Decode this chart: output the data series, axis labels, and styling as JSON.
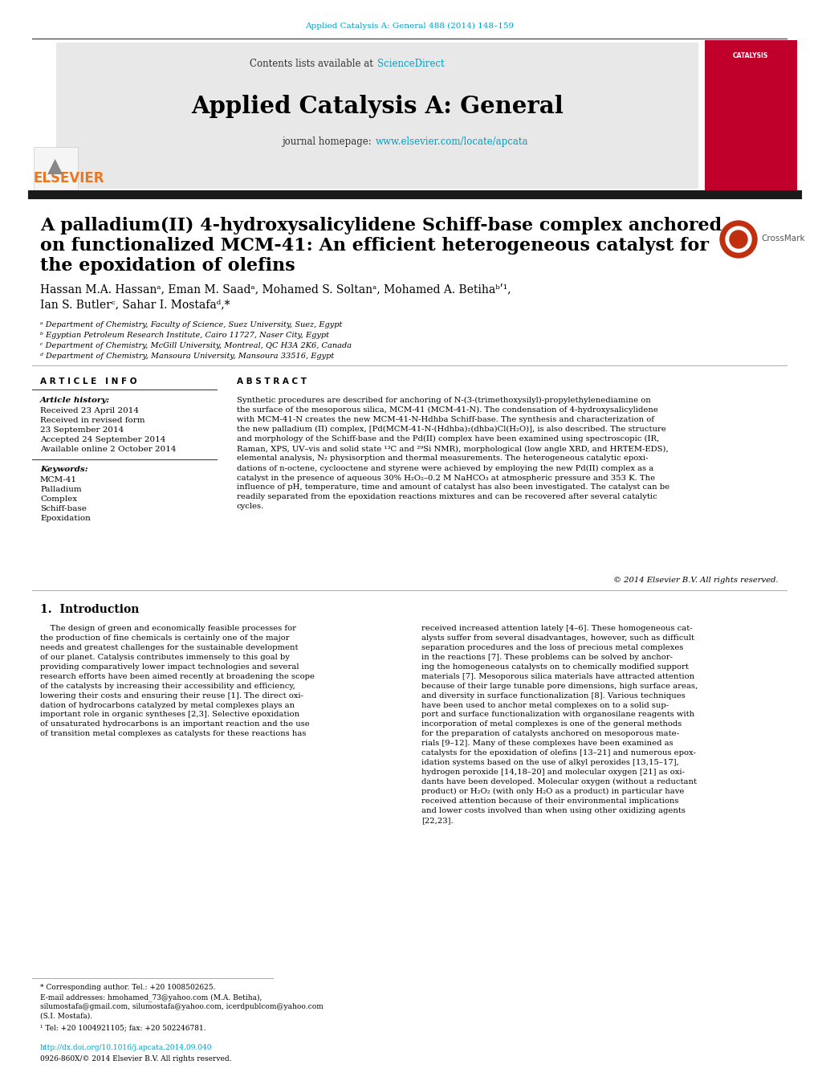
{
  "bg_color": "#ffffff",
  "top_link_text": "Applied Catalysis A: General 488 (2014) 148–159",
  "top_link_color": "#00a0c6",
  "header_bg": "#e8e8e8",
  "contents_text": "Contents lists available at ",
  "sciencedirect_text": "ScienceDirect",
  "sciencedirect_color": "#00a0c6",
  "journal_title": "Applied Catalysis A: General",
  "journal_homepage_text": "journal homepage: ",
  "journal_url": "www.elsevier.com/locate/apcata",
  "journal_url_color": "#00a0c6",
  "article_title_line1": "A palladium(II) 4-hydroxysalicylidene Schiff-base complex anchored",
  "article_title_line2": "on functionalized MCM-41: An efficient heterogeneous catalyst for",
  "article_title_line3": "the epoxidation of olefins",
  "authors_line1": "Hassan M.A. Hassanᵃ, Eman M. Saadᵃ, Mohamed S. Soltanᵃ, Mohamed A. Betihaᵇʹ¹,",
  "authors_line2": "Ian S. Butlerᶜ, Sahar I. Mostafaᵈ,*",
  "affil_a": "ᵃ Department of Chemistry, Faculty of Science, Suez University, Suez, Egypt",
  "affil_b": "ᵇ Egyptian Petroleum Research Institute, Cairo 11727, Naser City, Egypt",
  "affil_c": "ᶜ Department of Chemistry, McGill University, Montreal, QC H3A 2K6, Canada",
  "affil_d": "ᵈ Department of Chemistry, Mansoura University, Mansoura 33516, Egypt",
  "article_info_title": "A R T I C L E   I N F O",
  "abstract_title": "A B S T R A C T",
  "article_history_label": "Article history:",
  "received_1": "Received 23 April 2014",
  "revised": "Received in revised form",
  "revised_date": "23 September 2014",
  "accepted": "Accepted 24 September 2014",
  "available": "Available online 2 October 2014",
  "keywords_label": "Keywords:",
  "kw1": "MCM-41",
  "kw2": "Palladium",
  "kw3": "Complex",
  "kw4": "Schiff-base",
  "kw5": "Epoxidation",
  "abstract_text": "Synthetic procedures are described for anchoring of N-(3-(trimethoxysilyl)-propylethylenediamine on\nthe surface of the mesoporous silica, MCM-41 (MCM-41-N). The condensation of 4-hydroxysalicylidene\nwith MCM-41-N creates the new MCM-41-N-Hdhba Schiff-base. The synthesis and characterization of\nthe new palladium (II) complex, [Pd(MCM-41-N-(Hdhba)₂(dhba)Cl(H₂O)], is also described. The structure\nand morphology of the Schiff-base and the Pd(II) complex have been examined using spectroscopic (IR,\nRaman, XPS, UV–vis and solid state ¹³C and ²⁹Si NMR), morphological (low angle XRD, and HRTEM-EDS),\nelemental analysis, N₂ physisorption and thermal measurements. The heterogeneous catalytic epoxi-\ndations of n-octene, cyclooctene and styrene were achieved by employing the new Pd(II) complex as a\ncatalyst in the presence of aqueous 30% H₂O₂–0.2 M NaHCO₃ at atmospheric pressure and 353 K. The\ninfluence of pH, temperature, time and amount of catalyst has also been investigated. The catalyst can be\nreadily separated from the epoxidation reactions mixtures and can be recovered after several catalytic\ncycles.",
  "copyright_text": "© 2014 Elsevier B.V. All rights reserved.",
  "intro_title": "1.  Introduction",
  "intro_left": "    The design of green and economically feasible processes for\nthe production of fine chemicals is certainly one of the major\nneeds and greatest challenges for the sustainable development\nof our planet. Catalysis contributes immensely to this goal by\nproviding comparatively lower impact technologies and several\nresearch efforts have been aimed recently at broadening the scope\nof the catalysts by increasing their accessibility and efficiency,\nlowering their costs and ensuring their reuse [1]. The direct oxi-\ndation of hydrocarbons catalyzed by metal complexes plays an\nimportant role in organic syntheses [2,3]. Selective epoxidation\nof unsaturated hydrocarbons is an important reaction and the use\nof transition metal complexes as catalysts for these reactions has",
  "intro_right": "received increased attention lately [4–6]. These homogeneous cat-\nalysts suffer from several disadvantages, however, such as difficult\nseparation procedures and the loss of precious metal complexes\nin the reactions [7]. These problems can be solved by anchor-\ning the homogeneous catalysts on to chemically modified support\nmaterials [7]. Mesoporous silica materials have attracted attention\nbecause of their large tunable pore dimensions, high surface areas,\nand diversity in surface functionalization [8]. Various techniques\nhave been used to anchor metal complexes on to a solid sup-\nport and surface functionalization with organosilane reagents with\nincorporation of metal complexes is one of the general methods\nfor the preparation of catalysts anchored on mesoporous mate-\nrials [9–12]. Many of these complexes have been examined as\ncatalysts for the epoxidation of olefins [13–21] and numerous epox-\nidation systems based on the use of alkyl peroxides [13,15–17],\nhydrogen peroxide [14,18–20] and molecular oxygen [21] as oxi-\ndants have been developed. Molecular oxygen (without a reductant\nproduct) or H₂O₂ (with only H₂O as a product) in particular have\nreceived attention because of their environmental implications\nand lower costs involved than when using other oxidizing agents\n[22,23].",
  "footnote_star": "* Corresponding author. Tel.: +20 1008502625.",
  "footnote_email_line1": "E-mail addresses: hmohamed_73@yahoo.com (M.A. Betiha),",
  "footnote_email_line2": "silumostafa@gmail.com, silumostafa@yahoo.com, icerdpublcom@yahoo.com",
  "footnote_email_line3": "(S.I. Mostafa).",
  "footnote_1": "¹ Tel: +20 1004921105; fax: +20 502246781.",
  "doi_text": "http://dx.doi.org/10.1016/j.apcata.2014.09.040",
  "doi_color": "#00a0c6",
  "issn_text": "0926-860X/© 2014 Elsevier B.V. All rights reserved.",
  "red_box_color": "#c0002a",
  "elsevier_orange": "#e87722"
}
